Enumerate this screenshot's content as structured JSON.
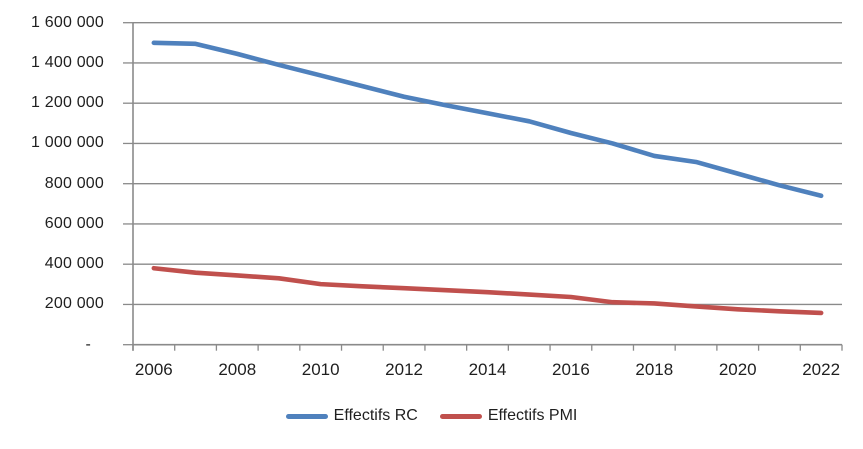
{
  "chart_data": {
    "type": "line",
    "title": "",
    "xlabel": "",
    "ylabel": "",
    "categories": [
      2006,
      2007,
      2008,
      2009,
      2010,
      2011,
      2012,
      2013,
      2014,
      2015,
      2016,
      2017,
      2018,
      2019,
      2020,
      2021,
      2022
    ],
    "series": [
      {
        "name": "Effectifs RC",
        "color": "#4F81BD",
        "values": [
          1500000,
          1495000,
          1445000,
          1390000,
          1338000,
          1285000,
          1232000,
          1190000,
          1150000,
          1110000,
          1052000,
          1000000,
          938000,
          908000,
          850000,
          792000,
          740000
        ]
      },
      {
        "name": "Effectifs PMI",
        "color": "#C0504D",
        "values": [
          380000,
          358000,
          344000,
          330000,
          301000,
          290000,
          281000,
          271000,
          261000,
          249000,
          237000,
          211000,
          205000,
          190000,
          176000,
          166000,
          158000
        ]
      }
    ],
    "ylim": [
      0,
      1600000
    ],
    "y_tick_interval": 200000,
    "y_tick_labels_top_down": [
      "1 600 000",
      "1 400 000",
      "1 200 000",
      "1 000 000",
      "800 000",
      "600 000",
      "400 000",
      "200 000",
      "-"
    ],
    "x_tick_labels": [
      "2006",
      "2008",
      "2010",
      "2012",
      "2014",
      "2016",
      "2018",
      "2020",
      "2022"
    ],
    "grid": "horizontal",
    "legend_position": "bottom",
    "axis_color": "#8A8A8A",
    "text_color": "#1f1f1f"
  }
}
